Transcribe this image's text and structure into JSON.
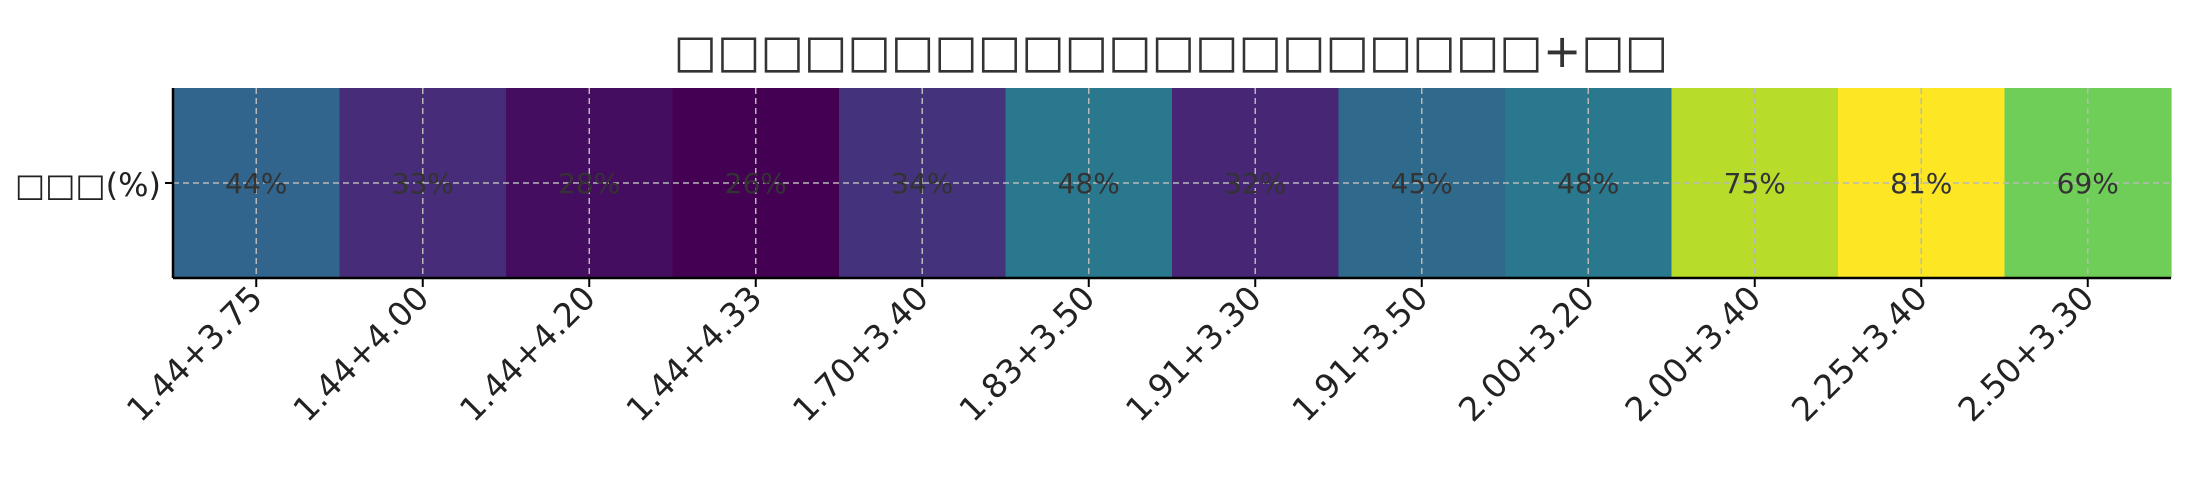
{
  "chart_data": {
    "type": "heatmap",
    "title": "□□□□□□□□□□□□□□□□□□□□+□□",
    "row_label": "□□□(%)",
    "categories": [
      "1.44+3.75",
      "1.44+4.00",
      "1.44+4.20",
      "1.44+4.33",
      "1.70+3.40",
      "1.83+3.50",
      "1.91+3.30",
      "1.91+3.50",
      "2.00+3.20",
      "2.00+3.40",
      "2.25+3.40",
      "2.50+3.30"
    ],
    "values": [
      44,
      33,
      28,
      26,
      34,
      48,
      32,
      45,
      48,
      75,
      81,
      69
    ],
    "value_labels": [
      "44%",
      "33%",
      "28%",
      "26%",
      "34%",
      "48%",
      "32%",
      "45%",
      "48%",
      "75%",
      "81%",
      "69%"
    ],
    "colormap": "viridis",
    "color_range": [
      26,
      81
    ],
    "grid": true,
    "colors": {
      "label_text": "#333333",
      "grid_line": "#b8b8b8",
      "axis": "#000000"
    }
  }
}
